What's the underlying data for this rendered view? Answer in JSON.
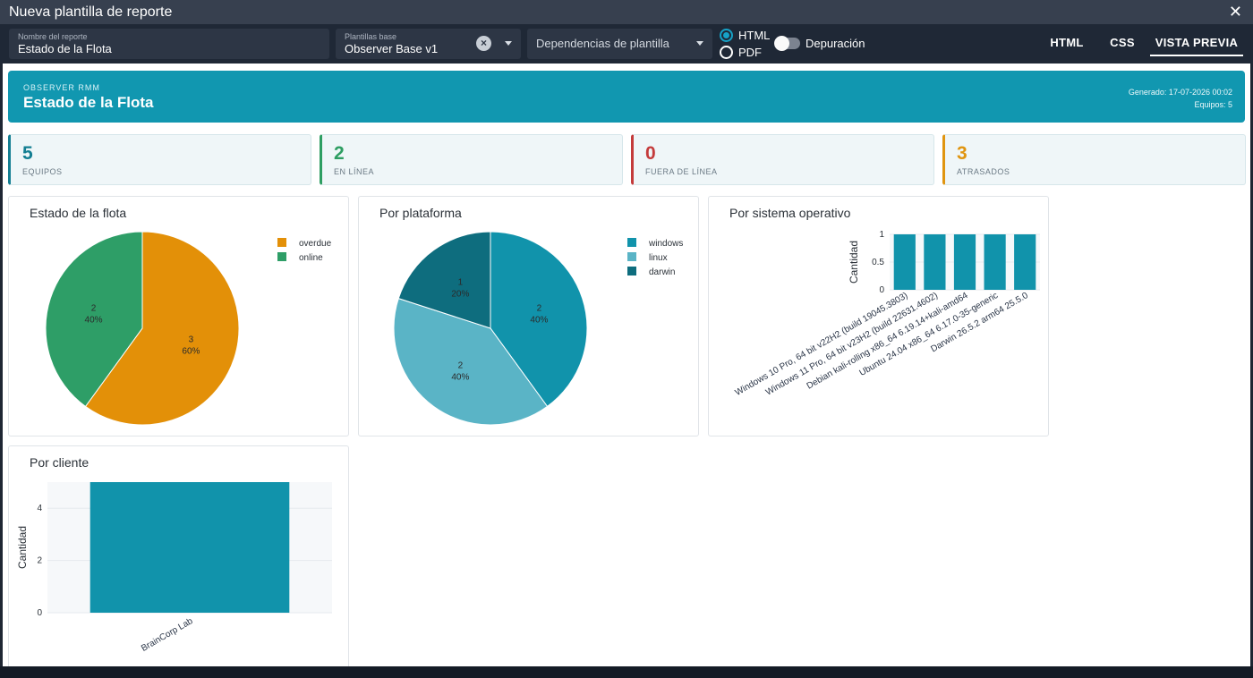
{
  "window": {
    "title": "Nueva plantilla de reporte",
    "close_glyph": "✕"
  },
  "toolbar": {
    "report_name": {
      "label": "Nombre del reporte",
      "value": "Estado de la Flota"
    },
    "base_template": {
      "label": "Plantillas base",
      "value": "Observer Base v1"
    },
    "dependencies": {
      "placeholder": "Dependencias de plantilla"
    },
    "format": {
      "options": [
        "HTML",
        "PDF"
      ],
      "selected": "HTML"
    },
    "debug": {
      "label": "Depuración",
      "on": false
    },
    "tabs": [
      "HTML",
      "CSS",
      "VISTA PREVIA"
    ],
    "active_tab": "VISTA PREVIA"
  },
  "report": {
    "kicker": "OBSERVER RMM",
    "title": "Estado de la Flota",
    "generated": "Generado: 17-07-2026 00:02",
    "devices": "Equipos: 5",
    "kpis": [
      {
        "value": "5",
        "label": "EQUIPOS",
        "color": "#137e92"
      },
      {
        "value": "2",
        "label": "EN LÍNEA",
        "color": "#2e9e62"
      },
      {
        "value": "0",
        "label": "FUERA DE LÍNEA",
        "color": "#c43b3b"
      },
      {
        "value": "3",
        "label": "ATRASADOS",
        "color": "#e09510"
      }
    ]
  },
  "chart_data": [
    {
      "type": "pie",
      "title": "Estado de la flota",
      "labels": [
        "overdue",
        "online"
      ],
      "values": [
        3,
        2
      ],
      "percents": [
        "60%",
        "40%"
      ],
      "colors": [
        "#e39008",
        "#2e9e67"
      ]
    },
    {
      "type": "pie",
      "title": "Por plataforma",
      "labels": [
        "windows",
        "linux",
        "darwin"
      ],
      "values": [
        2,
        2,
        1
      ],
      "percents": [
        "40%",
        "40%",
        "20%"
      ],
      "colors": [
        "#1193ab",
        "#5ab4c6",
        "#0e6d7e"
      ]
    },
    {
      "type": "bar",
      "title": "Por sistema operativo",
      "categories": [
        "Windows 10 Pro, 64 bit v22H2 (build 19045.3803)",
        "Windows 11 Pro, 64 bit v23H2 (build 22631.4602)",
        "Debian kali-rolling x86_64 6.19.14+kali-amd64",
        "Ubuntu 24.04 x86_64 6.17.0-35-generic",
        "Darwin 26.5.2 arm64 25.5.0"
      ],
      "values": [
        1,
        1,
        1,
        1,
        1
      ],
      "ylabel": "Cantidad",
      "ylim": [
        0,
        1
      ],
      "yticks": [
        "0",
        "0.5",
        "1"
      ],
      "color": "#1193ab"
    },
    {
      "type": "bar",
      "title": "Por cliente",
      "categories": [
        "BrainCorp Lab"
      ],
      "values": [
        5
      ],
      "ylabel": "Cantidad",
      "ylim": [
        0,
        5
      ],
      "yticks": [
        "0",
        "2",
        "4"
      ],
      "color": "#1193ab"
    }
  ]
}
